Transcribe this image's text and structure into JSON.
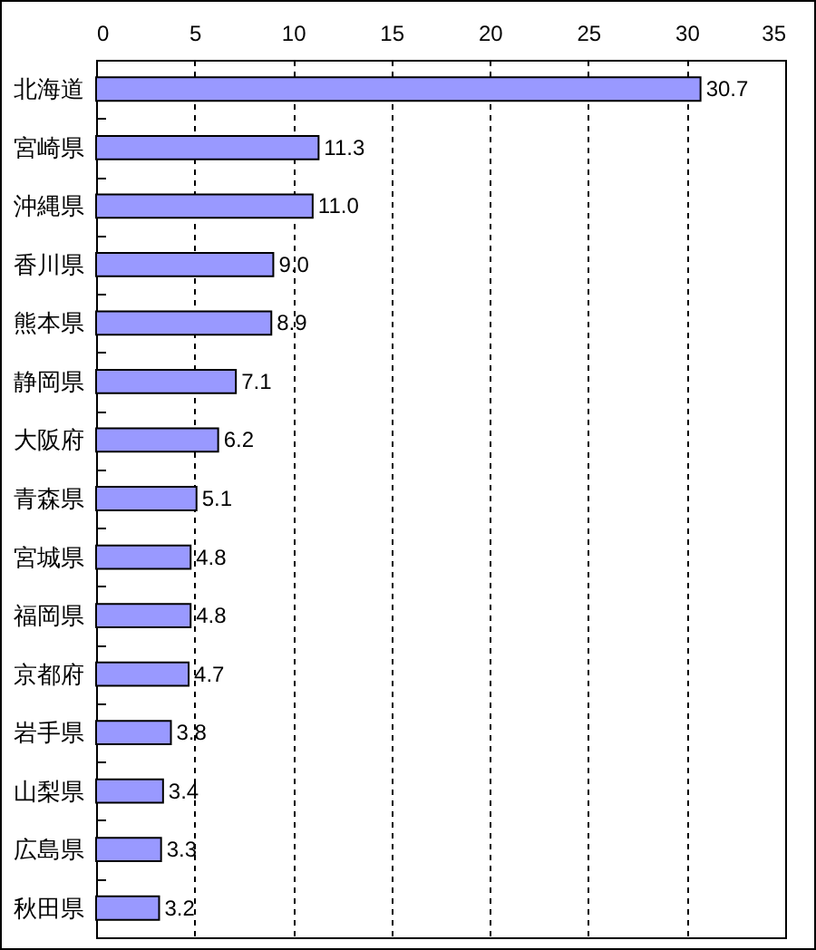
{
  "chart_data": {
    "type": "bar",
    "orientation": "horizontal",
    "categories": [
      "北海道",
      "宮崎県",
      "沖縄県",
      "香川県",
      "熊本県",
      "静岡県",
      "大阪府",
      "青森県",
      "宮城県",
      "福岡県",
      "京都府",
      "岩手県",
      "山梨県",
      "広島県",
      "秋田県"
    ],
    "values": [
      30.7,
      11.3,
      11.0,
      9.0,
      8.9,
      7.1,
      6.2,
      5.1,
      4.8,
      4.8,
      4.7,
      3.8,
      3.4,
      3.3,
      3.2
    ],
    "value_labels": [
      "30.7",
      "11.3",
      "11.0",
      "9.0",
      "8.9",
      "7.1",
      "6.2",
      "5.1",
      "4.8",
      "4.8",
      "4.7",
      "3.8",
      "3.4",
      "3.3",
      "3.2"
    ],
    "color": "#9999ff",
    "xlim": [
      0,
      35
    ],
    "xticks": [
      0,
      5,
      10,
      15,
      20,
      25,
      30,
      35
    ],
    "grid": "x"
  }
}
